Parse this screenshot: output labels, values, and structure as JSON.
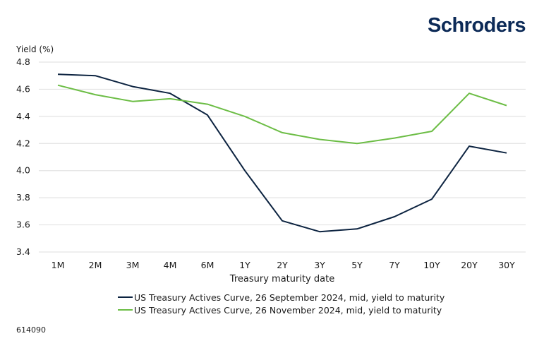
{
  "brand": {
    "logo_text": "Schroders",
    "color": "#0c2a57"
  },
  "footnote": "614090",
  "chart_data": {
    "type": "line",
    "title": "",
    "xlabel": "Treasury maturity date",
    "ylabel": "Yield (%)",
    "ylim": [
      3.4,
      4.8
    ],
    "yticks": [
      4.8,
      4.6,
      4.4,
      4.2,
      4.0,
      3.8,
      3.6,
      3.4
    ],
    "yticks_labels": [
      "4.8",
      "4.6",
      "4.4",
      "4.2",
      "4.0",
      "3.8",
      "3.6",
      "3.4"
    ],
    "grid": true,
    "legend_position": "bottom",
    "categories": [
      "1M",
      "2M",
      "3M",
      "4M",
      "6M",
      "1Y",
      "2Y",
      "3Y",
      "5Y",
      "7Y",
      "10Y",
      "20Y",
      "30Y"
    ],
    "series": [
      {
        "name": "US Treasury Actives Curve, 26 September 2024, mid, yield to maturity",
        "color": "#0c2340",
        "values": [
          4.71,
          4.7,
          4.62,
          4.57,
          4.41,
          4.0,
          3.63,
          3.55,
          3.57,
          3.66,
          3.79,
          4.18,
          4.13
        ]
      },
      {
        "name": "US Treasury Actives Curve, 26 November 2024, mid, yield to maturity",
        "color": "#6cbd45",
        "values": [
          4.63,
          4.56,
          4.51,
          4.53,
          4.49,
          4.4,
          4.28,
          4.23,
          4.2,
          4.24,
          4.29,
          4.57,
          4.48
        ]
      }
    ]
  }
}
